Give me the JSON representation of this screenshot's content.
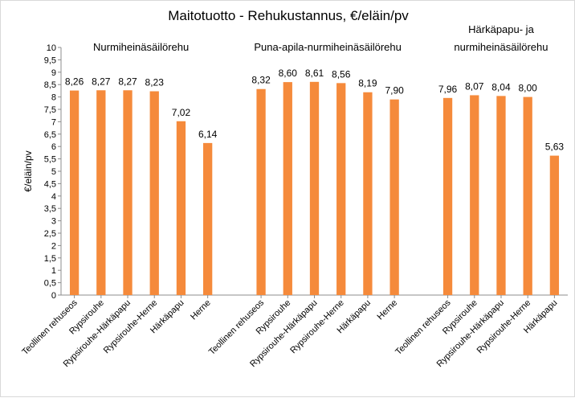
{
  "chart_data": {
    "type": "bar",
    "title": "Maitotuotto - Rehukustannus, €/eläin/pv",
    "ylabel": "€/eläin/pv",
    "xlabel": "",
    "ylim": [
      0,
      10
    ],
    "ytick_step": 0.5,
    "ytick_labels": [
      "0",
      "0,5",
      "1",
      "1,5",
      "2",
      "2,5",
      "3",
      "3,5",
      "4",
      "4,5",
      "5",
      "5,5",
      "6",
      "6,5",
      "7",
      "7,5",
      "8",
      "8,5",
      "9",
      "9,5",
      "10"
    ],
    "grid": false,
    "bar_color": "#F58A3B",
    "groups": [
      {
        "label_lines": [
          "Nurmiheinäsäilörehu"
        ],
        "categories": [
          "Teollinen rehuseos",
          "Rypsirouhe",
          "Rypsirouhe-Härkäpapu",
          "Rypsirouhe-Herne",
          "Härkäpapu",
          "Herne"
        ],
        "values": [
          8.26,
          8.27,
          8.27,
          8.23,
          7.02,
          6.14
        ],
        "value_labels": [
          "8,26",
          "8,27",
          "8,27",
          "8,23",
          "7,02",
          "6,14"
        ]
      },
      {
        "label_lines": [
          "Puna-apila-nurmiheinäsäilörehu"
        ],
        "categories": [
          "Teollinen rehuseos",
          "Rypsirouhe",
          "Rypsirouhe-Härkäpapu",
          "Rypsirouhe-Herne",
          "Härkäpapu",
          "Herne"
        ],
        "values": [
          8.32,
          8.6,
          8.61,
          8.56,
          8.19,
          7.9
        ],
        "value_labels": [
          "8,32",
          "8,60",
          "8,61",
          "8,56",
          "8,19",
          "7,90"
        ]
      },
      {
        "label_lines": [
          "Härkäpapu- ja",
          "nurmiheinäsäilörehu"
        ],
        "categories": [
          "Teollinen rehuseos",
          "Rypsirouhe",
          "Rypsirouhe-Härkäpapu",
          "Rypsirouhe-Herne",
          "Härkäpapu"
        ],
        "values": [
          7.96,
          8.07,
          8.04,
          8.0,
          5.63
        ],
        "value_labels": [
          "7,96",
          "8,07",
          "8,04",
          "8,00",
          "5,63"
        ]
      }
    ]
  }
}
